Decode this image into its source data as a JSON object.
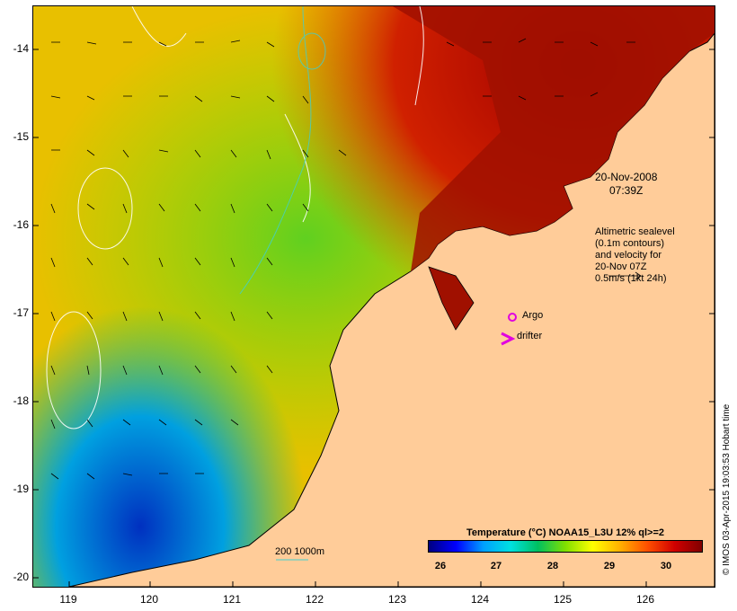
{
  "map": {
    "lat_ticks": [
      "-14",
      "-15",
      "-16",
      "-17",
      "-18",
      "-19",
      "-20"
    ],
    "lon_ticks": [
      "119",
      "120",
      "121",
      "122",
      "123",
      "124",
      "125",
      "126"
    ],
    "lat_range": [
      -20.1,
      -13.6
    ],
    "lon_range": [
      118.6,
      126.7
    ],
    "land_color": "#ffcc99"
  },
  "annotations": {
    "date": "20-Nov-2008",
    "time": "07:39Z",
    "altimetry_lines": [
      "Altimetric sealevel",
      "(0.1m contours)",
      "and velocity for",
      "20-Nov 07Z",
      "0.5m/s (1kt 24h)"
    ],
    "argo_label": "Argo",
    "drifter_label": "drifter",
    "scale_label": "200 1000m",
    "argo_color": "#e000e0"
  },
  "colorbar": {
    "title": "Temperature (°C) NOAA15_L3U 12% ql>=2",
    "ticks": [
      "26",
      "27",
      "28",
      "29",
      "30"
    ]
  },
  "credit": "© IMOS 03-Apr-2015 19:03:53 Hobart time"
}
